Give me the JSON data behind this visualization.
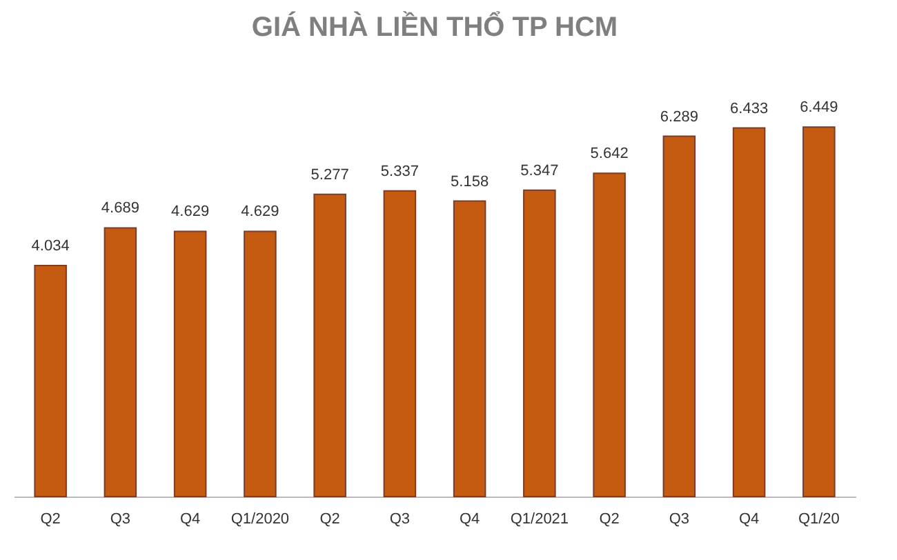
{
  "chart_data": {
    "type": "bar",
    "title": "GIÁ NHÀ LIỀN THỔ TP HCM",
    "categories": [
      "Q2",
      "Q3",
      "Q4",
      "Q1/2020",
      "Q2",
      "Q3",
      "Q4",
      "Q1/2021",
      "Q2",
      "Q3",
      "Q4",
      "Q1/20"
    ],
    "values": [
      4.034,
      4.689,
      4.629,
      4.629,
      5.277,
      5.337,
      5.158,
      5.347,
      5.642,
      6.289,
      6.433,
      6.449
    ],
    "color": "#c55a11",
    "data_labels": true
  }
}
